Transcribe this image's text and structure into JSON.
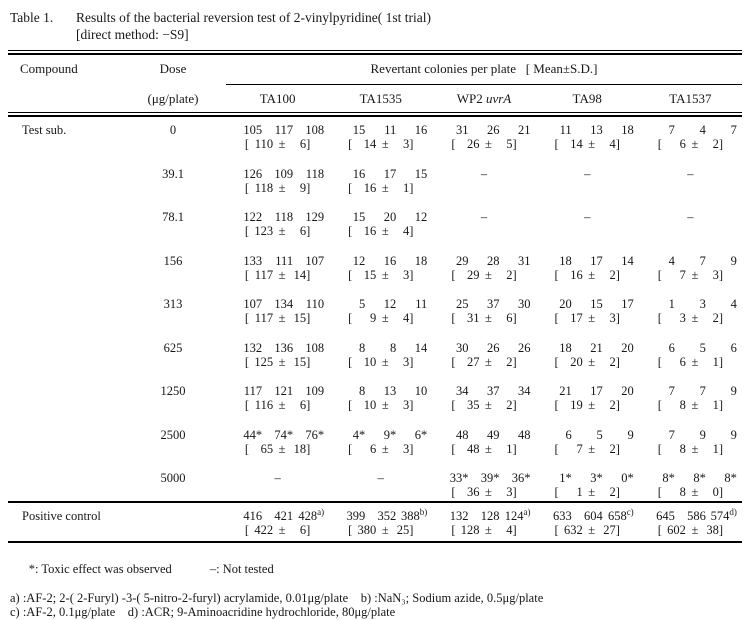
{
  "caption": {
    "label": "Table 1.",
    "line1": "Results of the bacterial reversion test of 2-vinylpyridine( 1st trial)",
    "line2": "[direct method: −S9]"
  },
  "table": {
    "col_compound": "Compound",
    "col_dose": "Dose",
    "dose_unit": "(μg/plate)",
    "span_header": "Revertant colonies per plate   [ Mean±S.D.]",
    "strains": [
      {
        "name": "TA100"
      },
      {
        "name": "TA1535"
      },
      {
        "name": "WP2 ",
        "italic": "uvrA"
      },
      {
        "name": "TA98"
      },
      {
        "name": "TA1537"
      }
    ],
    "test_label": "Test sub.",
    "positive_label": "Positive control",
    "dash": "–",
    "pm": "±",
    "rows": [
      {
        "dose": "0",
        "cells": [
          {
            "v": [
              "105",
              "117",
              "108"
            ],
            "m": "110",
            "s": "6"
          },
          {
            "v": [
              "15",
              "11",
              "16"
            ],
            "m": "14",
            "s": "3"
          },
          {
            "v": [
              "31",
              "26",
              "21"
            ],
            "m": "26",
            "s": "5"
          },
          {
            "v": [
              "11",
              "13",
              "18"
            ],
            "m": "14",
            "s": "4"
          },
          {
            "v": [
              "7",
              "4",
              "7"
            ],
            "m": "6",
            "s": "2"
          }
        ]
      },
      {
        "dose": "39.1",
        "cells": [
          {
            "v": [
              "126",
              "109",
              "118"
            ],
            "m": "118",
            "s": "9"
          },
          {
            "v": [
              "16",
              "17",
              "15"
            ],
            "m": "16",
            "s": "1"
          },
          {
            "dash": true
          },
          {
            "dash": true
          },
          {
            "dash": true
          }
        ]
      },
      {
        "dose": "78.1",
        "cells": [
          {
            "v": [
              "122",
              "118",
              "129"
            ],
            "m": "123",
            "s": "6"
          },
          {
            "v": [
              "15",
              "20",
              "12"
            ],
            "m": "16",
            "s": "4"
          },
          {
            "dash": true
          },
          {
            "dash": true
          },
          {
            "dash": true
          }
        ]
      },
      {
        "dose": "156",
        "cells": [
          {
            "v": [
              "133",
              "111",
              "107"
            ],
            "m": "117",
            "s": "14"
          },
          {
            "v": [
              "12",
              "16",
              "18"
            ],
            "m": "15",
            "s": "3"
          },
          {
            "v": [
              "29",
              "28",
              "31"
            ],
            "m": "29",
            "s": "2"
          },
          {
            "v": [
              "18",
              "17",
              "14"
            ],
            "m": "16",
            "s": "2"
          },
          {
            "v": [
              "4",
              "7",
              "9"
            ],
            "m": "7",
            "s": "3"
          }
        ]
      },
      {
        "dose": "313",
        "cells": [
          {
            "v": [
              "107",
              "134",
              "110"
            ],
            "m": "117",
            "s": "15"
          },
          {
            "v": [
              "5",
              "12",
              "11"
            ],
            "m": "9",
            "s": "4"
          },
          {
            "v": [
              "25",
              "37",
              "30"
            ],
            "m": "31",
            "s": "6"
          },
          {
            "v": [
              "20",
              "15",
              "17"
            ],
            "m": "17",
            "s": "3"
          },
          {
            "v": [
              "1",
              "3",
              "4"
            ],
            "m": "3",
            "s": "2"
          }
        ]
      },
      {
        "dose": "625",
        "cells": [
          {
            "v": [
              "132",
              "136",
              "108"
            ],
            "m": "125",
            "s": "15"
          },
          {
            "v": [
              "8",
              "8",
              "14"
            ],
            "m": "10",
            "s": "3"
          },
          {
            "v": [
              "30",
              "26",
              "26"
            ],
            "m": "27",
            "s": "2"
          },
          {
            "v": [
              "18",
              "21",
              "20"
            ],
            "m": "20",
            "s": "2"
          },
          {
            "v": [
              "6",
              "5",
              "6"
            ],
            "m": "6",
            "s": "1"
          }
        ]
      },
      {
        "dose": "1250",
        "cells": [
          {
            "v": [
              "117",
              "121",
              "109"
            ],
            "m": "116",
            "s": "6"
          },
          {
            "v": [
              "8",
              "13",
              "10"
            ],
            "m": "10",
            "s": "3"
          },
          {
            "v": [
              "34",
              "37",
              "34"
            ],
            "m": "35",
            "s": "2"
          },
          {
            "v": [
              "21",
              "17",
              "20"
            ],
            "m": "19",
            "s": "2"
          },
          {
            "v": [
              "7",
              "7",
              "9"
            ],
            "m": "8",
            "s": "1"
          }
        ]
      },
      {
        "dose": "2500",
        "cells": [
          {
            "v": [
              "44*",
              "74*",
              "76*"
            ],
            "m": "65",
            "s": "18"
          },
          {
            "v": [
              "4*",
              "9*",
              "6*"
            ],
            "m": "6",
            "s": "3"
          },
          {
            "v": [
              "48",
              "49",
              "48"
            ],
            "m": "48",
            "s": "1"
          },
          {
            "v": [
              "6",
              "5",
              "9"
            ],
            "m": "7",
            "s": "2"
          },
          {
            "v": [
              "7",
              "9",
              "9"
            ],
            "m": "8",
            "s": "1"
          }
        ]
      },
      {
        "dose": "5000",
        "cells": [
          {
            "dash": true
          },
          {
            "dash": true
          },
          {
            "v": [
              "33*",
              "39*",
              "36*"
            ],
            "m": "36",
            "s": "3"
          },
          {
            "v": [
              "1*",
              "3*",
              "0*"
            ],
            "m": "1",
            "s": "2"
          },
          {
            "v": [
              "8*",
              "8*",
              "8*"
            ],
            "m": "8",
            "s": "0"
          }
        ]
      }
    ],
    "positive_row": {
      "cells": [
        {
          "v": [
            "416",
            "421",
            "428"
          ],
          "sup": "a)",
          "m": "422",
          "s": "6"
        },
        {
          "v": [
            "399",
            "352",
            "388"
          ],
          "sup": "b)",
          "m": "380",
          "s": "25"
        },
        {
          "v": [
            "132",
            "128",
            "124"
          ],
          "sup": "a)",
          "m": "128",
          "s": "4"
        },
        {
          "v": [
            "633",
            "604",
            "658"
          ],
          "sup": "c)",
          "m": "632",
          "s": "27"
        },
        {
          "v": [
            "645",
            "586",
            "574"
          ],
          "sup": "d)",
          "m": "602",
          "s": "38"
        }
      ]
    }
  },
  "footnotes": {
    "line1_a": "*: Toxic effect was observed",
    "line1_b": "–: Not tested",
    "line2": "a) :AF-2; 2-( 2-Furyl) -3-( 5-nitro-2-furyl) acrylamide, 0.01μg/plate    b) :NaN₃; Sodium azide, 0.5μg/plate",
    "line3": "c) :AF-2, 0.1μg/plate    d) :ACR; 9-Aminoacridine hydrochloride, 80μg/plate"
  }
}
